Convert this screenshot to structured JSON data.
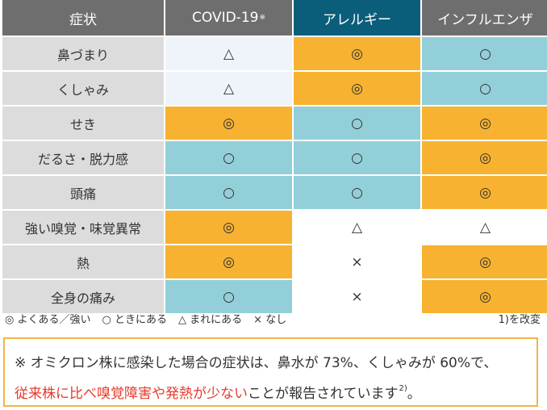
{
  "header": {
    "symptom": "症状",
    "covid": "COVID-19",
    "covid_mark": "※",
    "allergy": "アレルギー",
    "influenza": "インフルエンザ"
  },
  "rows": [
    {
      "label": "鼻づまり",
      "covid": "△",
      "allergy": "◎",
      "influenza": "○"
    },
    {
      "label": "くしゃみ",
      "covid": "△",
      "allergy": "◎",
      "influenza": "○"
    },
    {
      "label": "せき",
      "covid": "◎",
      "allergy": "○",
      "influenza": "◎"
    },
    {
      "label": "だるさ・脱力感",
      "covid": "○",
      "allergy": "○",
      "influenza": "◎"
    },
    {
      "label": "頭痛",
      "covid": "○",
      "allergy": "○",
      "influenza": "◎"
    },
    {
      "label": "強い嗅覚・味覚異常",
      "covid": "◎",
      "allergy": "△",
      "influenza": "△"
    },
    {
      "label": "熱",
      "covid": "◎",
      "allergy": "×",
      "influenza": "◎"
    },
    {
      "label": "全身の痛み",
      "covid": "○",
      "allergy": "×",
      "influenza": "◎"
    }
  ],
  "legend": {
    "items": [
      "◎ よくある／強い",
      "○ ときにある",
      "△ まれにある",
      "× なし"
    ],
    "source_note": "1)を改変"
  },
  "note": {
    "line1": "※ オミクロン株に感染した場合の症状は、鼻水が 73%、くしゃみが 60%で、",
    "line2_red": "従来株に比べ嗅覚障害や発熱が少ない",
    "line2_rest": "ことが報告されています",
    "line2_ref": "2)",
    "line2_end": "。"
  },
  "colors": {
    "header_gray": "#6e6e6e",
    "header_allergy": "#0b5e7a",
    "orange": "#f7b231",
    "light_blue": "#93cfd9",
    "label_gray": "#dcdcdc",
    "note_red": "#e83a2e",
    "note_border": "#f2b44a"
  }
}
